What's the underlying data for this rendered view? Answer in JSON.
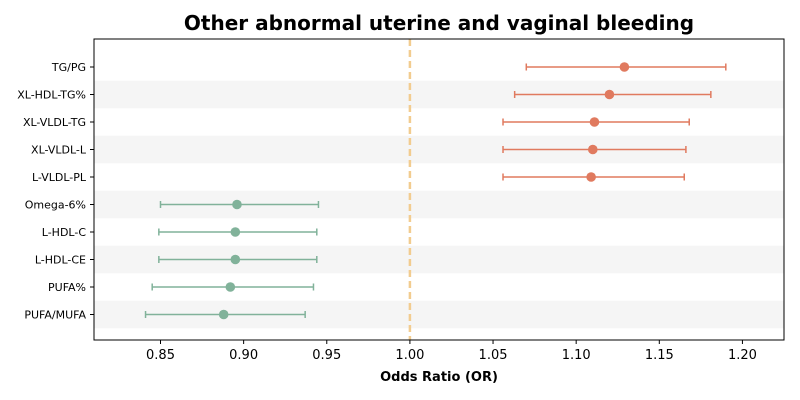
{
  "chart_data": {
    "type": "forest",
    "title": "Other abnormal uterine and vaginal bleeding",
    "xlabel": "Odds Ratio (OR)",
    "ylabel": "",
    "xlim": [
      0.81,
      1.225
    ],
    "xticks": [
      0.85,
      0.9,
      0.95,
      1.0,
      1.05,
      1.1,
      1.15,
      1.2
    ],
    "xtick_labels": [
      "0.85",
      "0.90",
      "0.95",
      "1.00",
      "1.05",
      "1.10",
      "1.15",
      "1.20"
    ],
    "reference_line": 1.0,
    "reference_line_style": "dashed",
    "alternating_row_shading": true,
    "grid": false,
    "colors": {
      "positive": "#e07a5f",
      "negative": "#81b29a",
      "reference": "#f2cc8f",
      "row_shade": "#f5f5f5",
      "axis": "#000000"
    },
    "rows": [
      {
        "label": "TG/PG",
        "or": 1.129,
        "ci_low": 1.07,
        "ci_high": 1.19
      },
      {
        "label": "XL-HDL-TG%",
        "or": 1.12,
        "ci_low": 1.063,
        "ci_high": 1.181
      },
      {
        "label": "XL-VLDL-TG",
        "or": 1.111,
        "ci_low": 1.056,
        "ci_high": 1.168
      },
      {
        "label": "XL-VLDL-L",
        "or": 1.11,
        "ci_low": 1.056,
        "ci_high": 1.166
      },
      {
        "label": "L-VLDL-PL",
        "or": 1.109,
        "ci_low": 1.056,
        "ci_high": 1.165
      },
      {
        "label": "Omega-6%",
        "or": 0.896,
        "ci_low": 0.85,
        "ci_high": 0.945
      },
      {
        "label": "L-HDL-C",
        "or": 0.895,
        "ci_low": 0.849,
        "ci_high": 0.944
      },
      {
        "label": "L-HDL-CE",
        "or": 0.895,
        "ci_low": 0.849,
        "ci_high": 0.944
      },
      {
        "label": "PUFA%",
        "or": 0.892,
        "ci_low": 0.845,
        "ci_high": 0.942
      },
      {
        "label": "PUFA/MUFA",
        "or": 0.888,
        "ci_low": 0.841,
        "ci_high": 0.937
      }
    ]
  }
}
